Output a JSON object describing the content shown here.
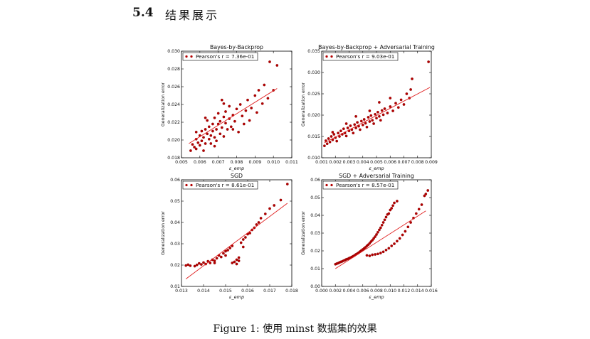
{
  "section": {
    "number": "5.4",
    "title": "结果展示"
  },
  "caption": "Figure 1: 使用 minst 数据集的效果",
  "colors": {
    "marker": "#b30000",
    "marker_edge": "#7a0000",
    "fit_line": "#e02020"
  },
  "chart_data": [
    {
      "type": "scatter",
      "title": "Bayes-by-Backprop",
      "xlabel": "ε_emp",
      "ylabel": "Generalization error",
      "xlim": [
        0.005,
        0.011
      ],
      "ylim": [
        0.018,
        0.03
      ],
      "xticks": [
        "0.005",
        "0.006",
        "0.007",
        "0.008",
        "0.009",
        "0.010",
        "0.011"
      ],
      "yticks": [
        "0.018",
        "0.020",
        "0.022",
        "0.024",
        "0.026",
        "0.028",
        "0.030"
      ],
      "legend": "Pearson's r = 7.36e-01",
      "legend_position": "top-left",
      "fit_line": {
        "x": [
          0.0054,
          0.0102
        ],
        "y": [
          0.0196,
          0.0258
        ]
      },
      "points": [
        [
          0.0055,
          0.0188
        ],
        [
          0.0056,
          0.0195
        ],
        [
          0.0057,
          0.0192
        ],
        [
          0.0058,
          0.0201
        ],
        [
          0.0058,
          0.019
        ],
        [
          0.0059,
          0.0197
        ],
        [
          0.006,
          0.0205
        ],
        [
          0.006,
          0.0194
        ],
        [
          0.0061,
          0.021
        ],
        [
          0.0061,
          0.0199
        ],
        [
          0.0062,
          0.0203
        ],
        [
          0.0062,
          0.0188
        ],
        [
          0.0063,
          0.0212
        ],
        [
          0.0063,
          0.0196
        ],
        [
          0.0064,
          0.0207
        ],
        [
          0.0064,
          0.0222
        ],
        [
          0.0065,
          0.0201
        ],
        [
          0.0065,
          0.0215
        ],
        [
          0.0066,
          0.0205
        ],
        [
          0.0066,
          0.0196
        ],
        [
          0.0067,
          0.0218
        ],
        [
          0.0067,
          0.021
        ],
        [
          0.0068,
          0.0203
        ],
        [
          0.0068,
          0.0225
        ],
        [
          0.0069,
          0.0212
        ],
        [
          0.0069,
          0.0199
        ],
        [
          0.007,
          0.0218
        ],
        [
          0.007,
          0.023
        ],
        [
          0.0071,
          0.0207
        ],
        [
          0.0071,
          0.0221
        ],
        [
          0.0072,
          0.0214
        ],
        [
          0.0072,
          0.0245
        ],
        [
          0.0073,
          0.0226
        ],
        [
          0.0073,
          0.0204
        ],
        [
          0.0074,
          0.0219
        ],
        [
          0.0074,
          0.0232
        ],
        [
          0.0075,
          0.0212
        ],
        [
          0.0076,
          0.0238
        ],
        [
          0.0076,
          0.0224
        ],
        [
          0.0077,
          0.0215
        ],
        [
          0.0078,
          0.0228
        ],
        [
          0.0079,
          0.0221
        ],
        [
          0.008,
          0.0235
        ],
        [
          0.0081,
          0.0209
        ],
        [
          0.0082,
          0.024
        ],
        [
          0.0083,
          0.0227
        ],
        [
          0.0084,
          0.0218
        ],
        [
          0.0085,
          0.0233
        ],
        [
          0.0086,
          0.0245
        ],
        [
          0.0087,
          0.0222
        ],
        [
          0.0088,
          0.0236
        ],
        [
          0.009,
          0.025
        ],
        [
          0.0091,
          0.0231
        ],
        [
          0.0092,
          0.0256
        ],
        [
          0.0094,
          0.0241
        ],
        [
          0.0095,
          0.0262
        ],
        [
          0.0097,
          0.0247
        ],
        [
          0.0098,
          0.0288
        ],
        [
          0.01,
          0.0256
        ],
        [
          0.0102,
          0.0284
        ],
        [
          0.0058,
          0.0209
        ],
        [
          0.0063,
          0.0225
        ],
        [
          0.0068,
          0.0193
        ],
        [
          0.0073,
          0.0241
        ],
        [
          0.0078,
          0.0212
        ]
      ]
    },
    {
      "type": "scatter",
      "title": "Bayes-by-Backprop + Adversarial Training",
      "xlabel": "ε_emp",
      "ylabel": "Generalization error",
      "xlim": [
        0.001,
        0.009
      ],
      "ylim": [
        0.01,
        0.035
      ],
      "xticks": [
        "0.001",
        "0.002",
        "0.003",
        "0.004",
        "0.005",
        "0.006",
        "0.007",
        "0.008",
        "0.009"
      ],
      "yticks": [
        "0.010",
        "0.015",
        "0.020",
        "0.025",
        "0.030",
        "0.035"
      ],
      "legend": "Pearson's r = 9.03e-01",
      "legend_position": "top-left",
      "fit_line": {
        "x": [
          0.0012,
          0.0089
        ],
        "y": [
          0.0135,
          0.0265
        ]
      },
      "points": [
        [
          0.0012,
          0.0128
        ],
        [
          0.0013,
          0.014
        ],
        [
          0.0014,
          0.0133
        ],
        [
          0.0015,
          0.0145
        ],
        [
          0.0016,
          0.0137
        ],
        [
          0.0017,
          0.015
        ],
        [
          0.0018,
          0.0142
        ],
        [
          0.0019,
          0.0155
        ],
        [
          0.002,
          0.0147
        ],
        [
          0.0021,
          0.0139
        ],
        [
          0.0022,
          0.0158
        ],
        [
          0.0023,
          0.015
        ],
        [
          0.0024,
          0.0163
        ],
        [
          0.0025,
          0.0155
        ],
        [
          0.0026,
          0.0168
        ],
        [
          0.0027,
          0.0158
        ],
        [
          0.0028,
          0.0151
        ],
        [
          0.0029,
          0.017
        ],
        [
          0.003,
          0.0163
        ],
        [
          0.0031,
          0.0175
        ],
        [
          0.0032,
          0.0166
        ],
        [
          0.0033,
          0.0158
        ],
        [
          0.0034,
          0.0178
        ],
        [
          0.0035,
          0.017
        ],
        [
          0.0036,
          0.0183
        ],
        [
          0.0037,
          0.0174
        ],
        [
          0.0038,
          0.0166
        ],
        [
          0.0039,
          0.0186
        ],
        [
          0.004,
          0.0177
        ],
        [
          0.0041,
          0.019
        ],
        [
          0.0042,
          0.0181
        ],
        [
          0.0043,
          0.0172
        ],
        [
          0.0044,
          0.0195
        ],
        [
          0.0045,
          0.0185
        ],
        [
          0.0046,
          0.0199
        ],
        [
          0.0047,
          0.0188
        ],
        [
          0.0048,
          0.018
        ],
        [
          0.0049,
          0.0202
        ],
        [
          0.005,
          0.0193
        ],
        [
          0.0051,
          0.0207
        ],
        [
          0.0052,
          0.0197
        ],
        [
          0.0053,
          0.0188
        ],
        [
          0.0054,
          0.0211
        ],
        [
          0.0055,
          0.0201
        ],
        [
          0.0056,
          0.0215
        ],
        [
          0.0058,
          0.0205
        ],
        [
          0.006,
          0.022
        ],
        [
          0.0062,
          0.021
        ],
        [
          0.0064,
          0.0228
        ],
        [
          0.0066,
          0.0218
        ],
        [
          0.0068,
          0.0236
        ],
        [
          0.007,
          0.0225
        ],
        [
          0.0072,
          0.025
        ],
        [
          0.0074,
          0.024
        ],
        [
          0.0075,
          0.026
        ],
        [
          0.0076,
          0.0285
        ],
        [
          0.0088,
          0.0325
        ],
        [
          0.0035,
          0.0197
        ],
        [
          0.0045,
          0.021
        ],
        [
          0.0028,
          0.018
        ],
        [
          0.0018,
          0.016
        ],
        [
          0.0052,
          0.023
        ],
        [
          0.006,
          0.024
        ]
      ]
    },
    {
      "type": "scatter",
      "title": "SGD",
      "xlabel": "ε_emp",
      "ylabel": "Generalization error",
      "xlim": [
        0.013,
        0.018
      ],
      "ylim": [
        0.01,
        0.06
      ],
      "xticks": [
        "0.013",
        "0.014",
        "0.015",
        "0.016",
        "0.017",
        "0.018"
      ],
      "yticks": [
        "0.01",
        "0.02",
        "0.03",
        "0.04",
        "0.05",
        "0.06"
      ],
      "legend": "Pearson's r = 8.61e-01",
      "legend_position": "top-left",
      "fit_line": {
        "x": [
          0.0132,
          0.0178
        ],
        "y": [
          0.0135,
          0.049
        ]
      },
      "points": [
        [
          0.0132,
          0.0198
        ],
        [
          0.0133,
          0.0202
        ],
        [
          0.0134,
          0.0197
        ],
        [
          0.0136,
          0.0195
        ],
        [
          0.0137,
          0.0201
        ],
        [
          0.0138,
          0.0208
        ],
        [
          0.0139,
          0.0203
        ],
        [
          0.014,
          0.0212
        ],
        [
          0.0141,
          0.0205
        ],
        [
          0.0142,
          0.0218
        ],
        [
          0.0143,
          0.021
        ],
        [
          0.0144,
          0.0225
        ],
        [
          0.0145,
          0.022
        ],
        [
          0.0146,
          0.0232
        ],
        [
          0.0147,
          0.0245
        ],
        [
          0.0148,
          0.0238
        ],
        [
          0.0149,
          0.0255
        ],
        [
          0.015,
          0.0265
        ],
        [
          0.0151,
          0.027
        ],
        [
          0.0152,
          0.028
        ],
        [
          0.0153,
          0.029
        ],
        [
          0.0154,
          0.0215
        ],
        [
          0.0155,
          0.0225
        ],
        [
          0.0156,
          0.0235
        ],
        [
          0.0157,
          0.0305
        ],
        [
          0.0158,
          0.032
        ],
        [
          0.0159,
          0.033
        ],
        [
          0.016,
          0.0345
        ],
        [
          0.0161,
          0.035
        ],
        [
          0.0162,
          0.0365
        ],
        [
          0.0163,
          0.0375
        ],
        [
          0.0164,
          0.039
        ],
        [
          0.0165,
          0.04
        ],
        [
          0.0166,
          0.042
        ],
        [
          0.0168,
          0.044
        ],
        [
          0.017,
          0.0465
        ],
        [
          0.0172,
          0.048
        ],
        [
          0.0175,
          0.0505
        ],
        [
          0.0178,
          0.058
        ],
        [
          0.0153,
          0.021
        ],
        [
          0.0155,
          0.0205
        ],
        [
          0.0156,
          0.022
        ],
        [
          0.0145,
          0.021
        ],
        [
          0.015,
          0.0245
        ],
        [
          0.0158,
          0.0285
        ]
      ]
    },
    {
      "type": "scatter",
      "title": "SGD + Adversarial Training",
      "xlabel": "ε_emp",
      "ylabel": "Generalization error",
      "xlim": [
        0.0,
        0.016
      ],
      "ylim": [
        0.0,
        0.06
      ],
      "xticks": [
        "0.000",
        "0.002",
        "0.004",
        "0.006",
        "0.008",
        "0.010",
        "0.012",
        "0.014",
        "0.016"
      ],
      "yticks": [
        "0.00",
        "0.01",
        "0.02",
        "0.03",
        "0.04",
        "0.05",
        "0.06"
      ],
      "legend": "Pearson's r = 8.57e-01",
      "legend_position": "top-left",
      "fit_line": {
        "x": [
          0.002,
          0.0152
        ],
        "y": [
          0.01,
          0.0425
        ]
      },
      "points": [
        [
          0.002,
          0.0125
        ],
        [
          0.0022,
          0.0128
        ],
        [
          0.0024,
          0.0131
        ],
        [
          0.0026,
          0.0135
        ],
        [
          0.0028,
          0.0138
        ],
        [
          0.003,
          0.0141
        ],
        [
          0.0032,
          0.0145
        ],
        [
          0.0034,
          0.0148
        ],
        [
          0.0036,
          0.0152
        ],
        [
          0.0038,
          0.0155
        ],
        [
          0.004,
          0.0159
        ],
        [
          0.0042,
          0.0162
        ],
        [
          0.0044,
          0.0166
        ],
        [
          0.0046,
          0.017
        ],
        [
          0.0048,
          0.0175
        ],
        [
          0.005,
          0.018
        ],
        [
          0.0052,
          0.0185
        ],
        [
          0.0054,
          0.019
        ],
        [
          0.0056,
          0.0196
        ],
        [
          0.0058,
          0.0202
        ],
        [
          0.006,
          0.0208
        ],
        [
          0.0062,
          0.0214
        ],
        [
          0.0064,
          0.022
        ],
        [
          0.0066,
          0.0228
        ],
        [
          0.0068,
          0.0235
        ],
        [
          0.007,
          0.0243
        ],
        [
          0.0072,
          0.0252
        ],
        [
          0.0074,
          0.026
        ],
        [
          0.0076,
          0.027
        ],
        [
          0.0078,
          0.028
        ],
        [
          0.008,
          0.0292
        ],
        [
          0.0082,
          0.0305
        ],
        [
          0.0084,
          0.0318
        ],
        [
          0.0086,
          0.033
        ],
        [
          0.0088,
          0.0345
        ],
        [
          0.009,
          0.036
        ],
        [
          0.0092,
          0.0375
        ],
        [
          0.0094,
          0.039
        ],
        [
          0.0096,
          0.0405
        ],
        [
          0.0098,
          0.041
        ],
        [
          0.01,
          0.043
        ],
        [
          0.0102,
          0.044
        ],
        [
          0.0104,
          0.0455
        ],
        [
          0.0106,
          0.047
        ],
        [
          0.011,
          0.048
        ],
        [
          0.0066,
          0.0175
        ],
        [
          0.007,
          0.0172
        ],
        [
          0.0074,
          0.0178
        ],
        [
          0.0078,
          0.018
        ],
        [
          0.0082,
          0.0183
        ],
        [
          0.0086,
          0.0188
        ],
        [
          0.009,
          0.0195
        ],
        [
          0.0094,
          0.0205
        ],
        [
          0.0098,
          0.0215
        ],
        [
          0.0102,
          0.0228
        ],
        [
          0.0106,
          0.024
        ],
        [
          0.011,
          0.0255
        ],
        [
          0.0114,
          0.027
        ],
        [
          0.0118,
          0.029
        ],
        [
          0.0122,
          0.031
        ],
        [
          0.0126,
          0.0335
        ],
        [
          0.013,
          0.036
        ],
        [
          0.0134,
          0.0385
        ],
        [
          0.0138,
          0.041
        ],
        [
          0.0142,
          0.0435
        ],
        [
          0.0146,
          0.046
        ],
        [
          0.015,
          0.051
        ],
        [
          0.0152,
          0.052
        ],
        [
          0.0155,
          0.054
        ]
      ]
    }
  ]
}
